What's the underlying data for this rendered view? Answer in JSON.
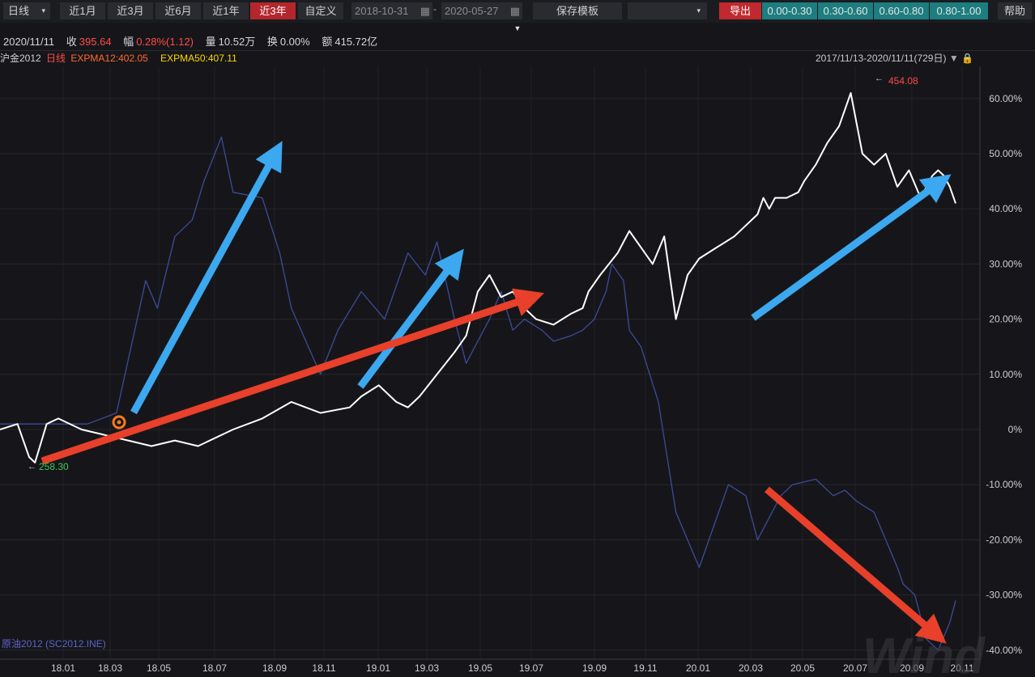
{
  "toolbar": {
    "period": "日线",
    "tabs": [
      "近1月",
      "近3月",
      "近6月",
      "近1年",
      "近3年",
      "自定义"
    ],
    "active_tab": "近3年",
    "date_start": "2018-10-31",
    "date_end": "2020-05-27",
    "save_template": "保存模板",
    "export": "导出",
    "ranges": [
      "0.00-0.30",
      "0.30-0.60",
      "0.60-0.80",
      "0.80-1.00"
    ],
    "help": "帮助"
  },
  "info": {
    "date": "2020/11/11",
    "close_label": "收",
    "close": "395.64",
    "change_label": "幅",
    "change": "0.28%(1.12)",
    "volume_label": "量",
    "volume": "10.52万",
    "turnover_label": "换",
    "turnover": "0.00%",
    "amount_label": "额",
    "amount": "415.72亿"
  },
  "legend": {
    "name": "沪金2012",
    "period": "日线",
    "ema12": "EXPMA12:402.05",
    "ema50": "EXPMA50:407.11",
    "range": "2017/11/13-2020/11/11(729日)"
  },
  "colors": {
    "gold": "#ffffff",
    "oil": "#3e4a9c",
    "ema12": "#ff6a2b",
    "ema50": "#ffd700",
    "blue_arrow": "#3ca8f0",
    "red_arrow": "#e8402a"
  },
  "chart_data": {
    "type": "line",
    "ylim": [
      -40,
      60
    ],
    "yticks": [
      "60.00%",
      "50.00%",
      "40.00%",
      "30.00%",
      "20.00%",
      "10.00%",
      "0%",
      "-10.00%",
      "-20.00%",
      "-30.00%",
      "-40.00%"
    ],
    "yvalues": [
      60,
      50,
      40,
      30,
      20,
      10,
      0,
      -10,
      -20,
      -30,
      -40
    ],
    "xticks": [
      "18.01",
      "18.03",
      "18.05",
      "18.07",
      "18.09",
      "18.11",
      "19.01",
      "19.03",
      "19.05",
      "19.07",
      "19.09",
      "19.11",
      "20.01",
      "20.03",
      "20.05",
      "20.07",
      "20.09",
      "20.11"
    ],
    "series": [
      {
        "name": "沪金2012",
        "x": [
          0,
          3,
          5,
          6,
          8,
          10,
          14,
          18,
          22,
          26,
          30,
          34,
          40,
          45,
          50,
          55,
          60,
          62,
          65,
          68,
          70,
          72,
          75,
          78,
          80,
          82,
          84,
          86,
          88,
          90,
          92,
          95,
          98,
          100,
          101,
          103,
          106,
          108,
          110,
          112,
          114,
          116,
          118,
          120,
          123,
          126,
          128,
          130,
          131,
          132,
          133,
          135,
          137,
          138,
          140,
          142,
          144,
          146,
          148,
          150,
          152,
          154,
          156,
          158,
          160,
          161,
          162,
          163,
          164
        ],
        "y": [
          0,
          1,
          -5,
          -6,
          1,
          2,
          0,
          -1,
          -2,
          -3,
          -2,
          -3,
          0,
          2,
          5,
          3,
          4,
          6,
          8,
          5,
          4,
          6,
          10,
          14,
          17,
          25,
          28,
          24,
          25,
          22,
          20,
          19,
          21,
          22,
          25,
          28,
          32,
          36,
          33,
          30,
          35,
          20,
          28,
          31,
          33,
          35,
          37,
          39,
          42,
          40,
          42,
          42,
          43,
          45,
          48,
          52,
          55,
          61,
          50,
          48,
          50,
          44,
          47,
          42,
          46,
          47,
          46,
          44,
          41
        ]
      },
      {
        "name": "原油2012 (SC2012.INE)",
        "x": [
          0,
          8,
          15,
          20,
          25,
          27,
          30,
          33,
          35,
          38,
          40,
          45,
          48,
          50,
          55,
          58,
          62,
          66,
          70,
          73,
          75,
          78,
          80,
          84,
          86,
          88,
          90,
          93,
          95,
          98,
          100,
          102,
          104,
          105,
          107,
          108,
          110,
          113,
          116,
          120,
          125,
          128,
          130,
          134,
          136,
          140,
          143,
          145,
          147,
          150,
          152,
          154,
          155,
          157,
          159,
          161,
          163,
          164
        ],
        "y": [
          1,
          1,
          1,
          3,
          27,
          22,
          35,
          38,
          45,
          53,
          43,
          42,
          32,
          22,
          10,
          18,
          25,
          20,
          32,
          28,
          34,
          20,
          12,
          20,
          25,
          18,
          20,
          18,
          16,
          17,
          18,
          20,
          25,
          30,
          27,
          18,
          15,
          5,
          -15,
          -25,
          -10,
          -12,
          -20,
          -12,
          -10,
          -9,
          -12,
          -11,
          -13,
          -15,
          -20,
          -25,
          -28,
          -30,
          -38,
          -40,
          -35,
          -31
        ]
      }
    ]
  },
  "annotations": {
    "high_label": "454.08",
    "low_label": "258.30"
  },
  "watermark": "Wind"
}
